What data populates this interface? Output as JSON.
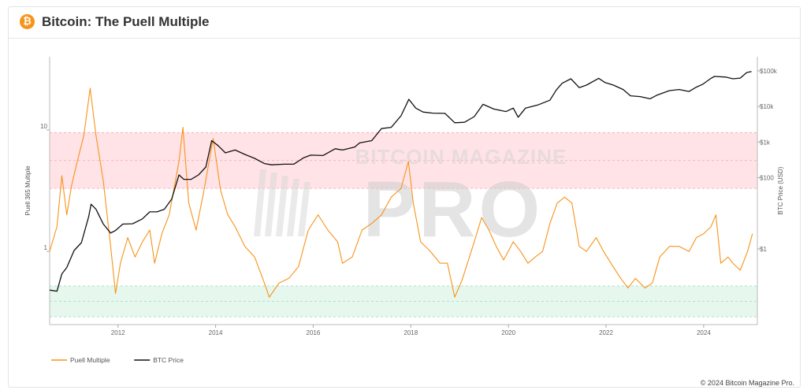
{
  "header": {
    "title": "Bitcoin: The Puell Multiple",
    "logo_glyph": "₿",
    "logo_color": "#f7931a"
  },
  "footer": {
    "copyright": "© 2024 Bitcoin Magazine Pro."
  },
  "watermark": {
    "line1": "BITCOIN MAGAZINE",
    "line2": "PRO"
  },
  "chart_data": {
    "type": "line",
    "title": "Bitcoin: The Puell Multiple",
    "x_ticks": [
      "2012",
      "2014",
      "2016",
      "2018",
      "2020",
      "2022",
      "2024"
    ],
    "x_range": [
      2010.6,
      2025.1
    ],
    "y_left": {
      "label": "Puell 365 Multiple",
      "scale": "log",
      "range": [
        0.25,
        40
      ],
      "ticks": [
        {
          "value": 1,
          "label": "1"
        },
        {
          "value": 10,
          "label": "10"
        }
      ]
    },
    "y_right": {
      "label": "BTC Price (USD)",
      "scale": "log",
      "range": [
        0.0075,
        250000
      ],
      "ticks": [
        {
          "value": 1,
          "label": "$1"
        },
        {
          "value": 100,
          "label": "$100"
        },
        {
          "value": 1000,
          "label": "$1k"
        },
        {
          "value": 10000,
          "label": "$10k"
        },
        {
          "value": 100000,
          "label": "$100k"
        }
      ]
    },
    "bands": [
      {
        "name": "high",
        "from": 3.3,
        "to": 9.5,
        "color": "#ffe3e6",
        "line_color": "#f2a8ae"
      },
      {
        "name": "low",
        "from": 0.29,
        "to": 0.52,
        "color": "#e6f7ee",
        "line_color": "#a8dcbe"
      }
    ],
    "series": [
      {
        "name": "Puell Multiple",
        "axis": "left",
        "color": "#f7931a",
        "points": [
          [
            2010.6,
            1.0
          ],
          [
            2010.75,
            1.6
          ],
          [
            2010.85,
            4.2
          ],
          [
            2010.95,
            2.0
          ],
          [
            2011.05,
            3.5
          ],
          [
            2011.15,
            5.2
          ],
          [
            2011.3,
            9
          ],
          [
            2011.43,
            22
          ],
          [
            2011.55,
            9
          ],
          [
            2011.7,
            3.8
          ],
          [
            2011.85,
            1.1
          ],
          [
            2011.95,
            0.45
          ],
          [
            2012.05,
            0.8
          ],
          [
            2012.2,
            1.3
          ],
          [
            2012.35,
            0.9
          ],
          [
            2012.5,
            1.2
          ],
          [
            2012.65,
            1.5
          ],
          [
            2012.75,
            0.8
          ],
          [
            2012.9,
            1.4
          ],
          [
            2013.05,
            2.0
          ],
          [
            2013.25,
            5.5
          ],
          [
            2013.33,
            10.5
          ],
          [
            2013.45,
            2.5
          ],
          [
            2013.6,
            1.5
          ],
          [
            2013.75,
            3.0
          ],
          [
            2013.95,
            8.5
          ],
          [
            2014.1,
            3.2
          ],
          [
            2014.25,
            2.0
          ],
          [
            2014.4,
            1.6
          ],
          [
            2014.6,
            1.1
          ],
          [
            2014.8,
            0.9
          ],
          [
            2015.0,
            0.55
          ],
          [
            2015.1,
            0.42
          ],
          [
            2015.3,
            0.55
          ],
          [
            2015.5,
            0.6
          ],
          [
            2015.7,
            0.75
          ],
          [
            2015.9,
            1.5
          ],
          [
            2016.1,
            2.0
          ],
          [
            2016.3,
            1.5
          ],
          [
            2016.5,
            1.2
          ],
          [
            2016.6,
            0.8
          ],
          [
            2016.8,
            0.9
          ],
          [
            2017.0,
            1.5
          ],
          [
            2017.2,
            1.7
          ],
          [
            2017.4,
            2.0
          ],
          [
            2017.6,
            2.8
          ],
          [
            2017.8,
            3.3
          ],
          [
            2017.95,
            5.5
          ],
          [
            2018.05,
            2.5
          ],
          [
            2018.2,
            1.2
          ],
          [
            2018.4,
            1.0
          ],
          [
            2018.6,
            0.8
          ],
          [
            2018.75,
            0.8
          ],
          [
            2018.9,
            0.42
          ],
          [
            2019.05,
            0.58
          ],
          [
            2019.3,
            1.2
          ],
          [
            2019.45,
            1.9
          ],
          [
            2019.6,
            1.5
          ],
          [
            2019.75,
            1.1
          ],
          [
            2019.9,
            0.85
          ],
          [
            2020.1,
            1.2
          ],
          [
            2020.25,
            1.0
          ],
          [
            2020.4,
            0.8
          ],
          [
            2020.55,
            0.9
          ],
          [
            2020.7,
            1.0
          ],
          [
            2020.85,
            1.7
          ],
          [
            2021.0,
            2.5
          ],
          [
            2021.15,
            2.8
          ],
          [
            2021.3,
            2.5
          ],
          [
            2021.45,
            1.1
          ],
          [
            2021.6,
            1.0
          ],
          [
            2021.8,
            1.3
          ],
          [
            2021.95,
            1.0
          ],
          [
            2022.1,
            0.8
          ],
          [
            2022.3,
            0.6
          ],
          [
            2022.45,
            0.5
          ],
          [
            2022.6,
            0.6
          ],
          [
            2022.8,
            0.5
          ],
          [
            2022.95,
            0.55
          ],
          [
            2023.1,
            0.9
          ],
          [
            2023.3,
            1.1
          ],
          [
            2023.5,
            1.1
          ],
          [
            2023.7,
            1.0
          ],
          [
            2023.85,
            1.3
          ],
          [
            2024.0,
            1.4
          ],
          [
            2024.15,
            1.6
          ],
          [
            2024.25,
            2.0
          ],
          [
            2024.35,
            0.8
          ],
          [
            2024.5,
            0.9
          ],
          [
            2024.6,
            0.8
          ],
          [
            2024.75,
            0.7
          ],
          [
            2024.9,
            1.0
          ],
          [
            2025.0,
            1.4
          ]
        ]
      },
      {
        "name": "BTC Price",
        "axis": "right",
        "color": "#111111",
        "points": [
          [
            2010.6,
            0.07
          ],
          [
            2010.75,
            0.065
          ],
          [
            2010.85,
            0.2
          ],
          [
            2010.95,
            0.3
          ],
          [
            2011.1,
            0.9
          ],
          [
            2011.25,
            1.5
          ],
          [
            2011.4,
            8
          ],
          [
            2011.45,
            18
          ],
          [
            2011.55,
            13
          ],
          [
            2011.7,
            5
          ],
          [
            2011.85,
            2.8
          ],
          [
            2011.95,
            3.3
          ],
          [
            2012.1,
            5
          ],
          [
            2012.3,
            5.1
          ],
          [
            2012.5,
            7
          ],
          [
            2012.65,
            11
          ],
          [
            2012.8,
            11
          ],
          [
            2012.95,
            13
          ],
          [
            2013.1,
            25
          ],
          [
            2013.25,
            120
          ],
          [
            2013.35,
            90
          ],
          [
            2013.5,
            90
          ],
          [
            2013.65,
            120
          ],
          [
            2013.8,
            200
          ],
          [
            2013.92,
            1100
          ],
          [
            2014.05,
            800
          ],
          [
            2014.2,
            500
          ],
          [
            2014.4,
            600
          ],
          [
            2014.6,
            450
          ],
          [
            2014.8,
            350
          ],
          [
            2015.0,
            250
          ],
          [
            2015.15,
            230
          ],
          [
            2015.4,
            240
          ],
          [
            2015.6,
            240
          ],
          [
            2015.8,
            360
          ],
          [
            2015.95,
            430
          ],
          [
            2016.2,
            420
          ],
          [
            2016.45,
            650
          ],
          [
            2016.6,
            600
          ],
          [
            2016.85,
            730
          ],
          [
            2016.95,
            950
          ],
          [
            2017.2,
            1100
          ],
          [
            2017.4,
            2400
          ],
          [
            2017.6,
            2600
          ],
          [
            2017.8,
            5500
          ],
          [
            2017.96,
            16000
          ],
          [
            2018.1,
            9000
          ],
          [
            2018.25,
            7000
          ],
          [
            2018.45,
            6500
          ],
          [
            2018.7,
            6400
          ],
          [
            2018.9,
            3500
          ],
          [
            2019.1,
            3600
          ],
          [
            2019.3,
            5200
          ],
          [
            2019.48,
            11500
          ],
          [
            2019.7,
            8500
          ],
          [
            2019.95,
            7200
          ],
          [
            2020.1,
            9000
          ],
          [
            2020.2,
            5000
          ],
          [
            2020.35,
            9000
          ],
          [
            2020.6,
            11000
          ],
          [
            2020.85,
            15000
          ],
          [
            2020.98,
            29000
          ],
          [
            2021.1,
            45000
          ],
          [
            2021.28,
            60000
          ],
          [
            2021.45,
            34000
          ],
          [
            2021.6,
            40000
          ],
          [
            2021.85,
            62000
          ],
          [
            2021.98,
            47000
          ],
          [
            2022.15,
            40000
          ],
          [
            2022.35,
            30000
          ],
          [
            2022.5,
            20000
          ],
          [
            2022.7,
            19000
          ],
          [
            2022.9,
            16500
          ],
          [
            2023.05,
            21000
          ],
          [
            2023.3,
            28000
          ],
          [
            2023.5,
            30000
          ],
          [
            2023.7,
            26500
          ],
          [
            2023.85,
            35000
          ],
          [
            2023.98,
            42000
          ],
          [
            2024.15,
            62000
          ],
          [
            2024.22,
            70000
          ],
          [
            2024.45,
            67000
          ],
          [
            2024.6,
            60000
          ],
          [
            2024.75,
            63000
          ],
          [
            2024.88,
            90000
          ],
          [
            2024.98,
            96000
          ]
        ]
      }
    ],
    "legend": {
      "position": "bottom-left",
      "entries": [
        {
          "name": "Puell Multiple",
          "color": "#f7931a"
        },
        {
          "name": "BTC Price",
          "color": "#111111"
        }
      ]
    }
  }
}
